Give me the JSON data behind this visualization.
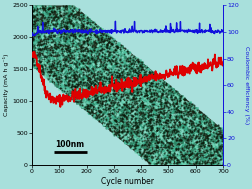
{
  "background_color": "#a8e0dc",
  "xlim": [
    0,
    700
  ],
  "ylim_left": [
    0,
    2500
  ],
  "ylim_right": [
    0,
    120
  ],
  "xlabel": "Cycle number",
  "ylabel_left": "Capacity (mA h g⁻¹)",
  "ylabel_right": "Coulombic efficiency (%)",
  "x_ticks": [
    0,
    100,
    200,
    300,
    400,
    500,
    600,
    700
  ],
  "y_ticks_left": [
    0,
    500,
    1000,
    1500,
    2000,
    2500
  ],
  "y_ticks_right": [
    0,
    20,
    40,
    60,
    80,
    100,
    120
  ],
  "scale_bar_text": "100nm",
  "red_line_color": "#dd0000",
  "blue_line_color": "#1010dd",
  "band_dark": "#1a2e1a",
  "band_teal": "#60c8b0"
}
